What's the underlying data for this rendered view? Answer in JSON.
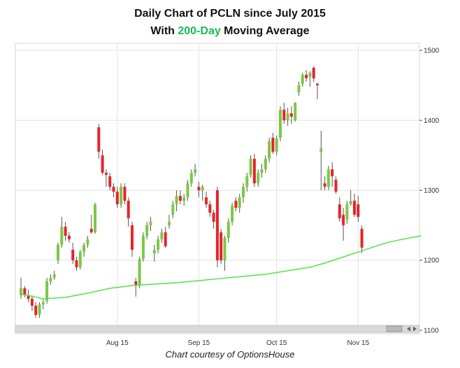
{
  "title_line1": "Daily Chart of PCLN since July 2015",
  "title_line2_prefix": "With ",
  "title_line2_highlight": "200-Day",
  "title_line2_suffix": " Moving Average",
  "credit": "Chart courtesy of OptionsHouse",
  "colors": {
    "up": "#7ac943",
    "down": "#e8232a",
    "ma": "#55e04a",
    "grid": "#e3e3e3",
    "highlight": "#1db954"
  },
  "chart_data": {
    "type": "candlestick",
    "title": "Daily Chart of PCLN since July 2015",
    "subtitle": "With 200-Day Moving Average",
    "xlabel": "",
    "ylabel": "",
    "ylim": [
      1095,
      1510
    ],
    "y_ticks": [
      1100,
      1200,
      1300,
      1400,
      1500
    ],
    "y_tick_labels": [
      "1100",
      "1200",
      "1300",
      "1400",
      "1500"
    ],
    "y_axis_side": "right",
    "x_ticks": [
      {
        "label": "Aug 15",
        "index": 26
      },
      {
        "label": "Sep 15",
        "index": 48
      },
      {
        "label": "Oct 15",
        "index": 69
      },
      {
        "label": "Nov 15",
        "index": 91
      }
    ],
    "grid": true,
    "candles": [
      [
        1150,
        1175,
        1145,
        1160
      ],
      [
        1160,
        1163,
        1147,
        1150
      ],
      [
        1150,
        1158,
        1140,
        1145
      ],
      [
        1145,
        1150,
        1128,
        1135
      ],
      [
        1135,
        1140,
        1118,
        1122
      ],
      [
        1122,
        1140,
        1118,
        1137
      ],
      [
        1137,
        1145,
        1130,
        1140
      ],
      [
        1142,
        1175,
        1138,
        1170
      ],
      [
        1170,
        1180,
        1165,
        1175
      ],
      [
        1175,
        1185,
        1172,
        1180
      ],
      [
        1200,
        1225,
        1195,
        1222
      ],
      [
        1222,
        1262,
        1218,
        1248
      ],
      [
        1248,
        1255,
        1228,
        1235
      ],
      [
        1235,
        1240,
        1225,
        1230
      ],
      [
        1215,
        1225,
        1195,
        1200
      ],
      [
        1200,
        1205,
        1185,
        1190
      ],
      [
        1190,
        1215,
        1187,
        1212
      ],
      [
        1212,
        1225,
        1205,
        1222
      ],
      [
        1222,
        1235,
        1218,
        1230
      ],
      [
        1245,
        1265,
        1238,
        1240
      ],
      [
        1240,
        1282,
        1238,
        1280
      ],
      [
        1390,
        1395,
        1345,
        1355
      ],
      [
        1350,
        1358,
        1322,
        1325
      ],
      [
        1325,
        1330,
        1305,
        1322
      ],
      [
        1320,
        1325,
        1300,
        1305
      ],
      [
        1305,
        1310,
        1290,
        1298
      ],
      [
        1298,
        1305,
        1275,
        1280
      ],
      [
        1280,
        1310,
        1275,
        1305
      ],
      [
        1305,
        1310,
        1280,
        1285
      ],
      [
        1285,
        1290,
        1248,
        1260
      ],
      [
        1250,
        1255,
        1205,
        1215
      ],
      [
        1170,
        1175,
        1148,
        1165
      ],
      [
        1165,
        1205,
        1160,
        1202
      ],
      [
        1202,
        1240,
        1198,
        1235
      ],
      [
        1235,
        1255,
        1230,
        1250
      ],
      [
        1250,
        1262,
        1242,
        1255
      ],
      [
        1210,
        1222,
        1198,
        1215
      ],
      [
        1215,
        1235,
        1210,
        1230
      ],
      [
        1230,
        1245,
        1225,
        1240
      ],
      [
        1240,
        1248,
        1218,
        1220
      ],
      [
        1250,
        1265,
        1245,
        1255
      ],
      [
        1265,
        1285,
        1260,
        1280
      ],
      [
        1280,
        1300,
        1270,
        1292
      ],
      [
        1292,
        1300,
        1280,
        1285
      ],
      [
        1285,
        1295,
        1278,
        1290
      ],
      [
        1290,
        1315,
        1285,
        1310
      ],
      [
        1310,
        1330,
        1305,
        1325
      ],
      [
        1325,
        1338,
        1320,
        1330
      ],
      [
        1305,
        1312,
        1290,
        1300
      ],
      [
        1300,
        1308,
        1285,
        1305
      ],
      [
        1290,
        1298,
        1275,
        1280
      ],
      [
        1280,
        1285,
        1262,
        1268
      ],
      [
        1268,
        1272,
        1245,
        1255
      ],
      [
        1300,
        1305,
        1190,
        1200
      ],
      [
        1240,
        1245,
        1195,
        1200
      ],
      [
        1200,
        1235,
        1185,
        1232
      ],
      [
        1232,
        1260,
        1225,
        1255
      ],
      [
        1255,
        1282,
        1250,
        1278
      ],
      [
        1285,
        1290,
        1270,
        1275
      ],
      [
        1275,
        1295,
        1268,
        1290
      ],
      [
        1290,
        1310,
        1282,
        1305
      ],
      [
        1305,
        1325,
        1298,
        1320
      ],
      [
        1322,
        1350,
        1318,
        1345
      ],
      [
        1345,
        1352,
        1305,
        1310
      ],
      [
        1310,
        1330,
        1305,
        1325
      ],
      [
        1325,
        1338,
        1318,
        1330
      ],
      [
        1330,
        1350,
        1325,
        1345
      ],
      [
        1345,
        1375,
        1340,
        1370
      ],
      [
        1375,
        1382,
        1352,
        1355
      ],
      [
        1355,
        1378,
        1350,
        1374
      ],
      [
        1375,
        1420,
        1370,
        1415
      ],
      [
        1415,
        1425,
        1395,
        1400
      ],
      [
        1400,
        1418,
        1392,
        1410
      ],
      [
        1410,
        1420,
        1395,
        1405
      ],
      [
        1400,
        1426,
        1398,
        1425
      ],
      [
        1440,
        1455,
        1435,
        1450
      ],
      [
        1452,
        1468,
        1448,
        1465
      ],
      [
        1465,
        1472,
        1455,
        1460
      ],
      [
        1462,
        1470,
        1448,
        1468
      ],
      [
        1475,
        1477,
        1455,
        1460
      ],
      [
        1452,
        1454,
        1430,
        1450
      ],
      [
        1355,
        1385,
        1300,
        1360
      ],
      [
        1310,
        1320,
        1300,
        1305
      ],
      [
        1305,
        1335,
        1300,
        1330
      ],
      [
        1330,
        1340,
        1305,
        1320
      ],
      [
        1315,
        1320,
        1295,
        1298
      ],
      [
        1280,
        1290,
        1255,
        1260
      ],
      [
        1265,
        1275,
        1228,
        1250
      ],
      [
        1258,
        1285,
        1252,
        1280
      ],
      [
        1280,
        1300,
        1278,
        1285
      ],
      [
        1285,
        1295,
        1262,
        1265
      ],
      [
        1280,
        1292,
        1255,
        1262
      ],
      [
        1245,
        1250,
        1210,
        1218
      ]
    ],
    "moving_average_200": [
      [
        0,
        1152
      ],
      [
        6,
        1145
      ],
      [
        12,
        1147
      ],
      [
        18,
        1153
      ],
      [
        24,
        1160
      ],
      [
        30,
        1164
      ],
      [
        36,
        1166
      ],
      [
        42,
        1168
      ],
      [
        48,
        1171
      ],
      [
        54,
        1174
      ],
      [
        60,
        1177
      ],
      [
        66,
        1180
      ],
      [
        72,
        1185
      ],
      [
        78,
        1190
      ],
      [
        82,
        1196
      ],
      [
        86,
        1203
      ],
      [
        90,
        1210
      ],
      [
        94,
        1217
      ],
      [
        98,
        1224
      ],
      [
        102,
        1229
      ],
      [
        106,
        1233
      ],
      [
        108,
        1235
      ]
    ]
  }
}
